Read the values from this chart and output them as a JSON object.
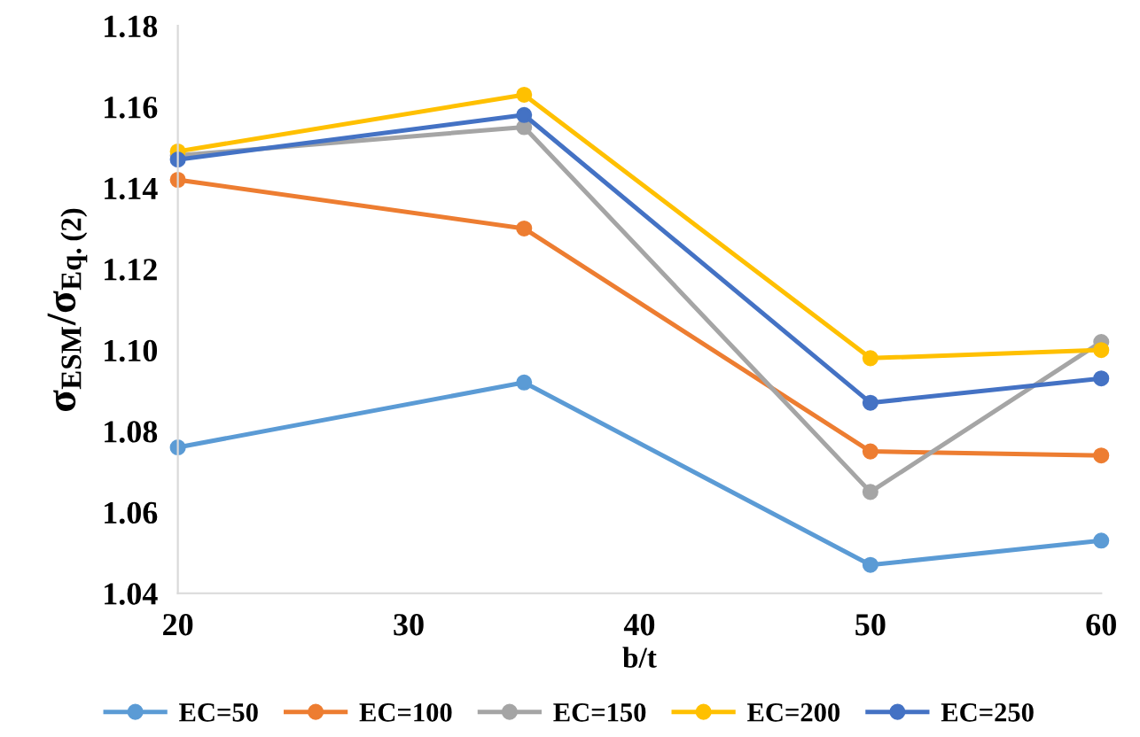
{
  "chart_data": {
    "type": "line",
    "xlabel": "b/t",
    "ylabel": "σ$_{ESM}$/σ$_{Eq.(2)}$",
    "x": [
      20,
      35,
      50,
      60
    ],
    "series": [
      {
        "name": "EC=50",
        "color": "#5b9bd5",
        "values": [
          1.076,
          1.092,
          1.047,
          1.053
        ]
      },
      {
        "name": "EC=100",
        "color": "#ed7d31",
        "values": [
          1.142,
          1.13,
          1.075,
          1.074
        ]
      },
      {
        "name": "EC=150",
        "color": "#a5a5a5",
        "values": [
          1.148,
          1.155,
          1.065,
          1.102
        ]
      },
      {
        "name": "EC=200",
        "color": "#ffc000",
        "values": [
          1.149,
          1.163,
          1.098,
          1.1
        ]
      },
      {
        "name": "EC=250",
        "color": "#4472c4",
        "values": [
          1.147,
          1.158,
          1.087,
          1.093
        ]
      }
    ],
    "xlim": [
      20,
      60
    ],
    "xticks": [
      20,
      30,
      40,
      50,
      60
    ],
    "ylim": [
      1.04,
      1.18
    ],
    "yticks": [
      {
        "value": 1.04,
        "label": "1.04"
      },
      {
        "value": 1.06,
        "label": "1.06"
      },
      {
        "value": 1.08,
        "label": "1.08"
      },
      {
        "value": 1.1,
        "label": "1.10"
      },
      {
        "value": 1.12,
        "label": "1.12"
      },
      {
        "value": 1.14,
        "label": "1.14"
      },
      {
        "value": 1.16,
        "label": "1.16"
      },
      {
        "value": 1.18,
        "label": "1.18"
      }
    ],
    "marker": "circle",
    "line_style": "solid",
    "legend": "bottom",
    "grid": false
  }
}
